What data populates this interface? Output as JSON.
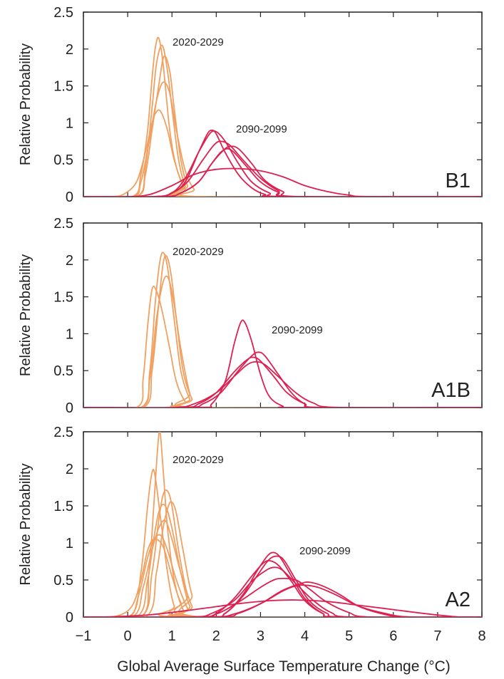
{
  "colors": {
    "near_term": "#f0a060",
    "late_century": "#dd2050",
    "frame": "#222222"
  },
  "xlabel": "Global Average Surface Temperature Change (°C)",
  "xticks": [
    "−1",
    "0",
    "1",
    "2",
    "3",
    "4",
    "5",
    "6",
    "7",
    "8"
  ],
  "chart_data": [
    {
      "type": "line",
      "scenario": "B1",
      "ylabel": "Relative Probability",
      "xlim": [
        -1,
        8
      ],
      "ylim": [
        0,
        2.5
      ],
      "yticks": [
        "0",
        "0.5",
        "1",
        "1.5",
        "2",
        "2.5"
      ],
      "annotations": [
        {
          "text": "2020-2029",
          "x": 1.05,
          "y": 2.2
        },
        {
          "text": "2090-2099",
          "x": 2.55,
          "y": 1.1
        }
      ],
      "series": [
        {
          "period": "2020-2029",
          "x": [
            0.1,
            0.3,
            0.45,
            0.55,
            0.62,
            0.7,
            0.8,
            0.95,
            1.1,
            1.3,
            1.5
          ],
          "y": [
            0,
            0.3,
            0.9,
            1.6,
            2.0,
            2.15,
            1.8,
            0.9,
            0.4,
            0.1,
            0
          ]
        },
        {
          "period": "2020-2029",
          "x": [
            0.2,
            0.4,
            0.55,
            0.65,
            0.78,
            0.9,
            1.0,
            1.15,
            1.3,
            1.5
          ],
          "y": [
            0,
            0.4,
            1.2,
            1.8,
            2.05,
            1.7,
            1.2,
            0.5,
            0.15,
            0
          ]
        },
        {
          "period": "2020-2029",
          "x": [
            0.2,
            0.4,
            0.55,
            0.7,
            0.82,
            0.95,
            1.05,
            1.2,
            1.35,
            1.55
          ],
          "y": [
            0,
            0.3,
            0.9,
            1.5,
            1.9,
            1.7,
            1.2,
            0.5,
            0.15,
            0
          ]
        },
        {
          "period": "2020-2029",
          "x": [
            0.1,
            0.3,
            0.5,
            0.65,
            0.8,
            0.95,
            1.1,
            1.3,
            1.5,
            1.7
          ],
          "y": [
            0,
            0.2,
            0.8,
            1.3,
            1.55,
            1.4,
            0.9,
            0.35,
            0.1,
            0
          ]
        },
        {
          "period": "2020-2029",
          "x": [
            -0.4,
            -0.1,
            0.2,
            0.4,
            0.55,
            0.65,
            0.75,
            0.9,
            1.05,
            1.25,
            1.5
          ],
          "y": [
            0,
            0.03,
            0.2,
            0.6,
            1.0,
            1.15,
            1.15,
            0.9,
            0.5,
            0.15,
            0
          ]
        },
        {
          "period": "2090-2099",
          "x": [
            0.6,
            1.0,
            1.3,
            1.6,
            1.8,
            1.9,
            2.0,
            2.2,
            2.5,
            2.8,
            3.1,
            3.5
          ],
          "y": [
            0,
            0.05,
            0.2,
            0.6,
            0.85,
            0.9,
            0.85,
            0.6,
            0.3,
            0.12,
            0.03,
            0
          ]
        },
        {
          "period": "2090-2099",
          "x": [
            0.6,
            1.0,
            1.3,
            1.6,
            1.85,
            2.0,
            2.2,
            2.5,
            2.8,
            3.2,
            3.6
          ],
          "y": [
            0,
            0.05,
            0.25,
            0.6,
            0.85,
            0.88,
            0.75,
            0.45,
            0.2,
            0.05,
            0
          ]
        },
        {
          "period": "2090-2099",
          "x": [
            0.6,
            1.0,
            1.35,
            1.7,
            1.95,
            2.1,
            2.3,
            2.6,
            3.0,
            3.4,
            3.8
          ],
          "y": [
            0,
            0.05,
            0.2,
            0.5,
            0.7,
            0.75,
            0.7,
            0.5,
            0.25,
            0.08,
            0
          ]
        },
        {
          "period": "2090-2099",
          "x": [
            0.8,
            1.2,
            1.6,
            1.9,
            2.1,
            2.25,
            2.4,
            2.7,
            3.0,
            3.4,
            3.8
          ],
          "y": [
            0,
            0.05,
            0.2,
            0.45,
            0.6,
            0.65,
            0.6,
            0.4,
            0.2,
            0.06,
            0
          ]
        },
        {
          "period": "2090-2099",
          "x": [
            0.8,
            1.2,
            1.6,
            1.9,
            2.15,
            2.3,
            2.5,
            2.8,
            3.1,
            3.5,
            3.9
          ],
          "y": [
            0,
            0.05,
            0.2,
            0.45,
            0.62,
            0.68,
            0.65,
            0.45,
            0.22,
            0.07,
            0
          ]
        },
        {
          "period": "2090-2099",
          "x": [
            0.0,
            0.5,
            1.0,
            1.5,
            2.0,
            2.5,
            3.0,
            3.5,
            4.0,
            4.5,
            5.0,
            5.5
          ],
          "y": [
            0,
            0.03,
            0.15,
            0.3,
            0.37,
            0.38,
            0.35,
            0.27,
            0.15,
            0.07,
            0.02,
            0
          ]
        }
      ]
    },
    {
      "type": "line",
      "scenario": "A1B",
      "ylabel": "Relative Probability",
      "xlim": [
        -1,
        8
      ],
      "ylim": [
        0,
        2.5
      ],
      "yticks": [
        "0",
        "0.5",
        "1",
        "1.5",
        "2",
        "2.5"
      ],
      "annotations": [
        {
          "text": "2020-2029",
          "x": 1.1,
          "y": 2.1
        },
        {
          "text": "2090-2099",
          "x": 3.4,
          "y": 1.05
        }
      ],
      "series": [
        {
          "period": "2020-2029",
          "x": [
            0.3,
            0.5,
            0.62,
            0.72,
            0.8,
            0.9,
            1.05,
            1.2,
            1.4,
            1.6
          ],
          "y": [
            0,
            0.5,
            1.4,
            1.95,
            2.1,
            1.9,
            1.2,
            0.5,
            0.12,
            0
          ]
        },
        {
          "period": "2020-2029",
          "x": [
            0.35,
            0.55,
            0.7,
            0.8,
            0.88,
            0.98,
            1.1,
            1.25,
            1.45,
            1.65
          ],
          "y": [
            0,
            0.5,
            1.4,
            1.95,
            2.05,
            1.8,
            1.2,
            0.5,
            0.12,
            0
          ]
        },
        {
          "period": "2020-2029",
          "x": [
            0.2,
            0.35,
            0.45,
            0.55,
            0.65,
            0.78,
            0.95,
            1.1,
            1.3,
            1.5
          ],
          "y": [
            0,
            0.4,
            1.1,
            1.6,
            1.58,
            1.3,
            0.8,
            0.35,
            0.08,
            0
          ]
        },
        {
          "period": "2020-2029",
          "x": [
            0.3,
            0.5,
            0.65,
            0.8,
            0.92,
            1.05,
            1.2,
            1.4,
            1.6
          ],
          "y": [
            0,
            0.4,
            1.2,
            1.7,
            1.75,
            1.4,
            0.8,
            0.2,
            0
          ]
        },
        {
          "period": "2090-2099",
          "x": [
            1.6,
            1.9,
            2.2,
            2.4,
            2.55,
            2.65,
            2.8,
            3.0,
            3.2,
            3.5,
            3.8
          ],
          "y": [
            0,
            0.05,
            0.35,
            0.85,
            1.15,
            1.15,
            0.9,
            0.45,
            0.15,
            0.02,
            0
          ]
        },
        {
          "period": "2090-2099",
          "x": [
            1.3,
            1.7,
            2.1,
            2.5,
            2.8,
            2.95,
            3.1,
            3.4,
            3.7,
            4.0,
            4.4
          ],
          "y": [
            0,
            0.05,
            0.2,
            0.5,
            0.7,
            0.75,
            0.7,
            0.45,
            0.2,
            0.05,
            0
          ]
        },
        {
          "period": "2090-2099",
          "x": [
            1.2,
            1.6,
            2.0,
            2.4,
            2.7,
            2.85,
            3.0,
            3.3,
            3.6,
            4.0,
            4.4
          ],
          "y": [
            0,
            0.05,
            0.2,
            0.48,
            0.65,
            0.68,
            0.63,
            0.42,
            0.2,
            0.05,
            0
          ]
        },
        {
          "period": "2090-2099",
          "x": [
            1.0,
            1.5,
            2.0,
            2.4,
            2.7,
            2.9,
            3.1,
            3.4,
            3.8,
            4.2,
            4.8
          ],
          "y": [
            0,
            0.05,
            0.2,
            0.42,
            0.58,
            0.62,
            0.58,
            0.42,
            0.2,
            0.06,
            0
          ]
        }
      ]
    },
    {
      "type": "line",
      "scenario": "A2",
      "ylabel": "Relative Probability",
      "xlim": [
        -1,
        8
      ],
      "ylim": [
        0,
        2.5
      ],
      "yticks": [
        "0",
        "0.5",
        "1",
        "1.5",
        "2",
        "2.5"
      ],
      "annotations": [
        {
          "text": "2020-2029",
          "x": 1.1,
          "y": 2.2
        },
        {
          "text": "2090-2099",
          "x": 4.2,
          "y": 0.95
        }
      ],
      "series": [
        {
          "period": "2020-2029",
          "x": [
            0.3,
            0.48,
            0.6,
            0.68,
            0.73,
            0.8,
            0.9,
            1.05,
            1.25,
            1.45
          ],
          "y": [
            0,
            0.6,
            1.6,
            2.3,
            2.5,
            2.0,
            1.2,
            0.5,
            0.1,
            0
          ]
        },
        {
          "period": "2020-2029",
          "x": [
            0.05,
            0.3,
            0.45,
            0.55,
            0.62,
            0.75,
            0.9,
            1.05,
            1.25
          ],
          "y": [
            0,
            0.6,
            1.5,
            1.95,
            1.9,
            1.3,
            0.6,
            0.15,
            0
          ]
        },
        {
          "period": "2020-2029",
          "x": [
            0.3,
            0.55,
            0.7,
            0.8,
            0.9,
            1.0,
            1.15,
            1.35,
            1.6
          ],
          "y": [
            0,
            0.6,
            1.3,
            1.65,
            1.7,
            1.5,
            0.9,
            0.3,
            0
          ]
        },
        {
          "period": "2020-2029",
          "x": [
            0.4,
            0.65,
            0.8,
            0.92,
            1.0,
            1.1,
            1.25,
            1.45,
            1.7
          ],
          "y": [
            0,
            0.6,
            1.2,
            1.5,
            1.55,
            1.4,
            0.9,
            0.3,
            0
          ]
        },
        {
          "period": "2020-2029",
          "x": [
            0.2,
            0.45,
            0.6,
            0.72,
            0.85,
            1.0,
            1.2,
            1.4,
            1.65
          ],
          "y": [
            0,
            0.5,
            1.1,
            1.45,
            1.5,
            1.2,
            0.6,
            0.15,
            0
          ]
        },
        {
          "period": "2020-2029",
          "x": [
            0.1,
            0.35,
            0.55,
            0.7,
            0.85,
            1.0,
            1.2,
            1.45,
            1.7
          ],
          "y": [
            0,
            0.4,
            0.9,
            1.2,
            1.3,
            1.05,
            0.6,
            0.15,
            0
          ]
        },
        {
          "period": "2020-2029",
          "x": [
            0.0,
            0.25,
            0.45,
            0.6,
            0.75,
            0.9,
            1.1,
            1.35,
            1.6
          ],
          "y": [
            0,
            0.3,
            0.8,
            1.05,
            1.1,
            0.9,
            0.5,
            0.12,
            0
          ]
        },
        {
          "period": "2020-2029",
          "x": [
            -0.6,
            -0.2,
            0.1,
            0.3,
            0.45,
            0.6,
            0.8,
            1.0,
            1.2,
            1.5
          ],
          "y": [
            0,
            0.02,
            0.15,
            0.5,
            0.9,
            1.05,
            0.95,
            0.55,
            0.2,
            0
          ]
        },
        {
          "period": "2090-2099",
          "x": [
            1.8,
            2.2,
            2.6,
            2.9,
            3.15,
            3.3,
            3.45,
            3.7,
            4.0,
            4.4,
            4.8
          ],
          "y": [
            0,
            0.05,
            0.3,
            0.6,
            0.82,
            0.87,
            0.8,
            0.55,
            0.25,
            0.05,
            0
          ]
        },
        {
          "period": "2090-2099",
          "x": [
            1.8,
            2.2,
            2.6,
            2.95,
            3.2,
            3.4,
            3.55,
            3.8,
            4.1,
            4.5,
            4.9
          ],
          "y": [
            0,
            0.05,
            0.28,
            0.58,
            0.78,
            0.82,
            0.75,
            0.5,
            0.22,
            0.05,
            0
          ]
        },
        {
          "period": "2090-2099",
          "x": [
            1.6,
            2.0,
            2.4,
            2.8,
            3.05,
            3.2,
            3.4,
            3.7,
            4.0,
            4.4,
            4.8
          ],
          "y": [
            0,
            0.05,
            0.25,
            0.55,
            0.72,
            0.76,
            0.7,
            0.48,
            0.22,
            0.05,
            0
          ]
        },
        {
          "period": "2090-2099",
          "x": [
            1.4,
            1.9,
            2.4,
            2.8,
            3.1,
            3.3,
            3.5,
            3.8,
            4.2,
            4.6,
            5.1
          ],
          "y": [
            0,
            0.05,
            0.22,
            0.48,
            0.62,
            0.67,
            0.63,
            0.45,
            0.22,
            0.06,
            0
          ]
        },
        {
          "period": "2090-2099",
          "x": [
            1.5,
            2.0,
            2.5,
            3.0,
            3.3,
            3.5,
            3.8,
            4.1,
            4.5,
            5.0,
            5.5
          ],
          "y": [
            0,
            0.04,
            0.2,
            0.4,
            0.5,
            0.52,
            0.5,
            0.38,
            0.2,
            0.06,
            0
          ]
        },
        {
          "period": "2090-2099",
          "x": [
            1.8,
            2.4,
            3.0,
            3.5,
            3.8,
            4.0,
            4.3,
            4.7,
            5.2,
            5.8,
            6.4
          ],
          "y": [
            0,
            0.04,
            0.18,
            0.35,
            0.42,
            0.43,
            0.4,
            0.3,
            0.15,
            0.05,
            0
          ]
        },
        {
          "period": "2090-2099",
          "x": [
            2.0,
            2.5,
            3.0,
            3.5,
            3.9,
            4.1,
            4.4,
            4.8,
            5.2,
            5.7,
            6.3
          ],
          "y": [
            0,
            0.05,
            0.18,
            0.36,
            0.45,
            0.47,
            0.42,
            0.3,
            0.15,
            0.05,
            0
          ]
        },
        {
          "period": "2090-2099",
          "x": [
            -0.5,
            0.5,
            1.5,
            2.5,
            3.2,
            3.8,
            4.5,
            5.2,
            6.0,
            6.8,
            7.5
          ],
          "y": [
            0,
            0.03,
            0.1,
            0.18,
            0.22,
            0.23,
            0.21,
            0.16,
            0.1,
            0.04,
            0
          ]
        }
      ]
    }
  ]
}
